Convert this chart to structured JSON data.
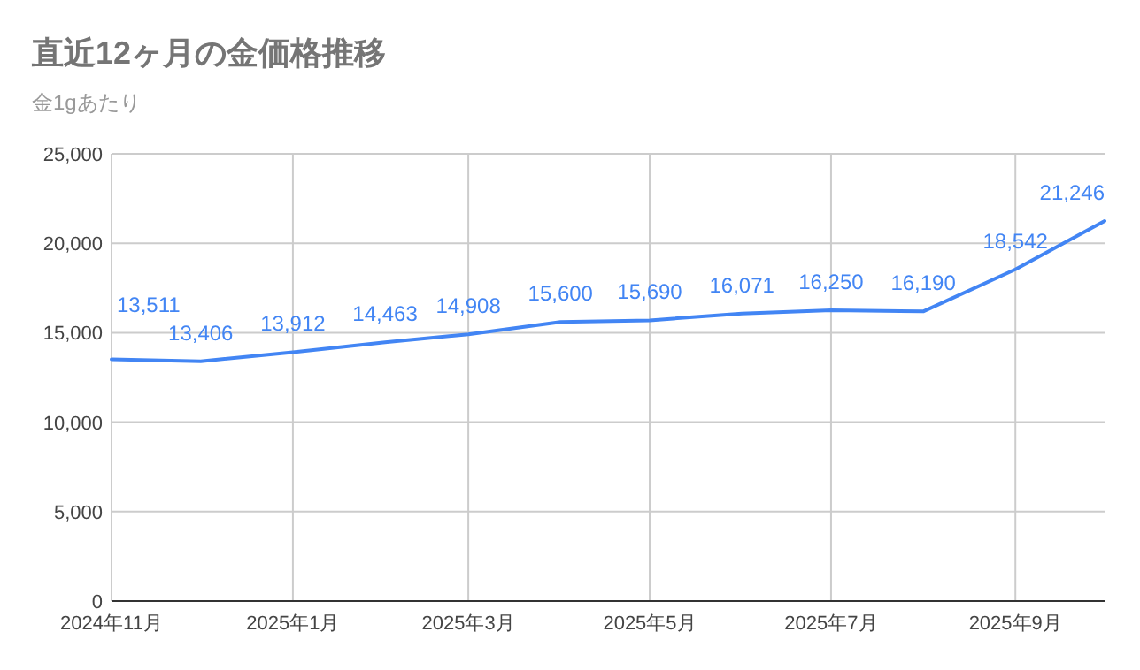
{
  "chart_data": {
    "type": "line",
    "title": "直近12ヶ月の金価格推移",
    "subtitle": "金1gあたり",
    "x": [
      "2024-11",
      "2024-12",
      "2025-01",
      "2025-02",
      "2025-03",
      "2025-04",
      "2025-05",
      "2025-06",
      "2025-07",
      "2025-08",
      "2025-09",
      "2025-10"
    ],
    "series": [
      {
        "color": "#4285f4",
        "values": [
          13511,
          13406,
          13912,
          14463,
          14908,
          15600,
          15690,
          16071,
          16250,
          16190,
          18542,
          21246
        ],
        "value_labels": [
          "13,511",
          "13,406",
          "13,912",
          "14,463",
          "14,908",
          "15,600",
          "15,690",
          "16,071",
          "16,250",
          "16,190",
          "18,542",
          "21,246"
        ]
      }
    ],
    "xlim": [
      "2024-11",
      "2025-10"
    ],
    "xticks": [
      {
        "value": "2024-11",
        "label": "2024年11月"
      },
      {
        "value": "2025-01",
        "label": "2025年1月"
      },
      {
        "value": "2025-03",
        "label": "2025年3月"
      },
      {
        "value": "2025-05",
        "label": "2025年5月"
      },
      {
        "value": "2025-07",
        "label": "2025年7月"
      },
      {
        "value": "2025-09",
        "label": "2025年9月"
      }
    ],
    "ylim": [
      0,
      25000
    ],
    "yticks": [
      {
        "value": 0,
        "label": "0"
      },
      {
        "value": 5000,
        "label": "5,000"
      },
      {
        "value": 10000,
        "label": "10,000"
      },
      {
        "value": 15000,
        "label": "15,000"
      },
      {
        "value": 20000,
        "label": "20,000"
      },
      {
        "value": 25000,
        "label": "25,000"
      }
    ],
    "grid": true,
    "marker": "none",
    "line_style": "solid"
  }
}
